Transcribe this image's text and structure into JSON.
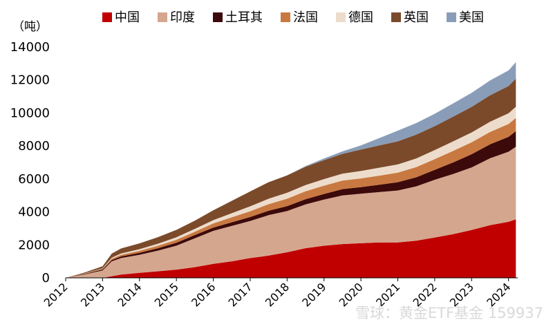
{
  "chart_data": {
    "type": "area",
    "stacked": true,
    "ylabel": "（吨）",
    "ylim": [
      0,
      14000
    ],
    "yticks": [
      0,
      2000,
      4000,
      6000,
      8000,
      10000,
      12000,
      14000
    ],
    "xlim": [
      2012,
      2024.25
    ],
    "xticks": [
      "2012",
      "2013",
      "2014",
      "2015",
      "2016",
      "2017",
      "2018",
      "2019",
      "2020",
      "2021",
      "2022",
      "2023",
      "2024"
    ],
    "x": [
      2012.0,
      2012.5,
      2013.0,
      2013.25,
      2013.5,
      2014.0,
      2014.5,
      2015.0,
      2015.5,
      2016.0,
      2016.5,
      2017.0,
      2017.5,
      2018.0,
      2018.5,
      2019.0,
      2019.5,
      2020.0,
      2020.5,
      2021.0,
      2021.5,
      2022.0,
      2022.5,
      2023.0,
      2023.5,
      2024.0,
      2024.2
    ],
    "series": [
      {
        "name": "中国",
        "color": "#c00000",
        "values": [
          0,
          0,
          0,
          100,
          200,
          300,
          400,
          500,
          650,
          850,
          1000,
          1200,
          1350,
          1550,
          1800,
          1950,
          2050,
          2100,
          2150,
          2150,
          2250,
          2450,
          2650,
          2900,
          3200,
          3400,
          3550
        ]
      },
      {
        "name": "印度",
        "color": "#d5a68e",
        "values": [
          0,
          200,
          450,
          900,
          1000,
          1100,
          1250,
          1450,
          1750,
          2000,
          2150,
          2250,
          2450,
          2500,
          2650,
          2800,
          2950,
          3000,
          3050,
          3150,
          3300,
          3500,
          3650,
          3800,
          4050,
          4250,
          4400
        ]
      },
      {
        "name": "土耳其",
        "color": "#3c0a0a",
        "values": [
          0,
          30,
          60,
          80,
          100,
          120,
          150,
          180,
          200,
          200,
          220,
          240,
          270,
          300,
          320,
          340,
          380,
          400,
          450,
          500,
          550,
          600,
          700,
          800,
          850,
          900,
          950
        ]
      },
      {
        "name": "法国",
        "color": "#c87941",
        "values": [
          0,
          20,
          40,
          80,
          100,
          120,
          150,
          180,
          200,
          250,
          300,
          350,
          400,
          450,
          480,
          500,
          520,
          530,
          550,
          580,
          620,
          650,
          700,
          720,
          750,
          780,
          800
        ]
      },
      {
        "name": "德国",
        "color": "#eddccb",
        "values": [
          0,
          15,
          30,
          60,
          80,
          100,
          120,
          150,
          170,
          200,
          250,
          300,
          330,
          360,
          380,
          400,
          420,
          450,
          480,
          500,
          520,
          550,
          580,
          600,
          620,
          650,
          680
        ]
      },
      {
        "name": "英国",
        "color": "#7b4a2a",
        "values": [
          0,
          50,
          120,
          250,
          300,
          350,
          400,
          450,
          500,
          600,
          750,
          900,
          1000,
          1050,
          1100,
          1150,
          1200,
          1300,
          1350,
          1400,
          1450,
          1450,
          1500,
          1550,
          1600,
          1650,
          1700
        ]
      },
      {
        "name": "美国",
        "color": "#8a9db8",
        "values": [
          0,
          0,
          0,
          0,
          0,
          0,
          0,
          0,
          0,
          0,
          0,
          0,
          0,
          0,
          50,
          100,
          150,
          250,
          450,
          650,
          700,
          750,
          800,
          850,
          900,
          950,
          1000
        ]
      }
    ]
  },
  "watermark": "雪球：黄金ETF基金 159937"
}
